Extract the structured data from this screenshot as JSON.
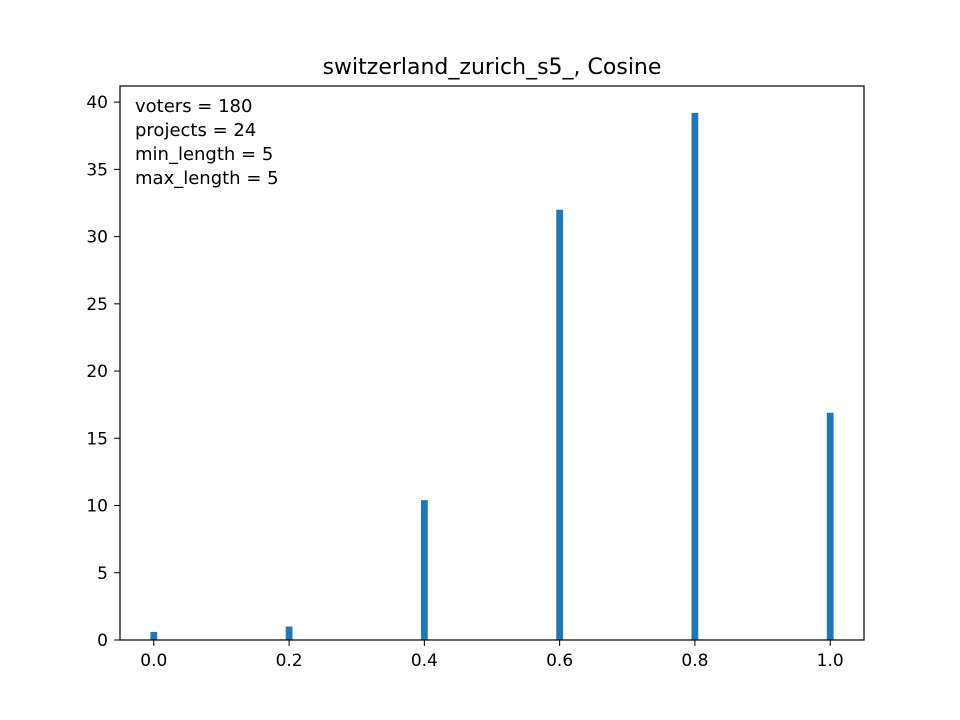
{
  "chart_data": {
    "type": "bar",
    "title": "switzerland_zurich_s5_, Cosine",
    "xlabel": "",
    "ylabel": "",
    "xlim": [
      -0.05,
      1.05
    ],
    "ylim": [
      0,
      41.2
    ],
    "xticks": [
      0.0,
      0.2,
      0.4,
      0.6,
      0.8,
      1.0
    ],
    "xtick_labels": [
      "0.0",
      "0.2",
      "0.4",
      "0.6",
      "0.8",
      "1.0"
    ],
    "yticks": [
      0,
      5,
      10,
      15,
      20,
      25,
      30,
      35,
      40
    ],
    "ytick_labels": [
      "0",
      "5",
      "10",
      "15",
      "20",
      "25",
      "30",
      "35",
      "40"
    ],
    "bar_width": 0.01,
    "grid": false,
    "color": "#1f77b4",
    "x": [
      0.0,
      0.2,
      0.4,
      0.6,
      0.8,
      1.0
    ],
    "values": [
      0.6,
      1.0,
      10.4,
      32.0,
      39.2,
      16.9
    ],
    "annotations": [
      "voters = 180",
      "projects = 24",
      "min_length = 5",
      "max_length = 5"
    ]
  }
}
